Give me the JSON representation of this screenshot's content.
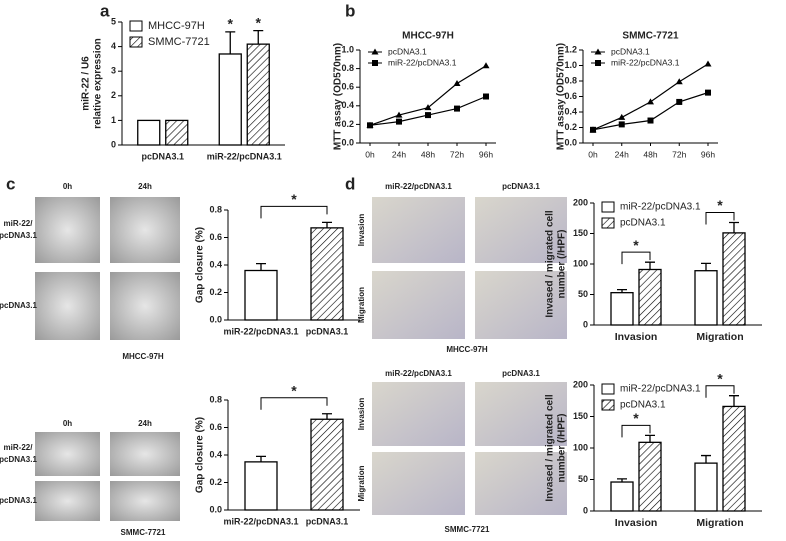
{
  "panel_labels": [
    "a",
    "b",
    "c",
    "d"
  ],
  "micrographs": [
    {
      "columns": [
        "0h",
        "24h"
      ],
      "rows": [
        [
          "miR-22/",
          "pcDNA3.1"
        ],
        [
          "pcDNA3.1"
        ]
      ],
      "caption": "MHCC-97H"
    },
    {
      "columns": [
        "0h",
        "24h"
      ],
      "rows": [
        [
          "miR-22/",
          "pcDNA3.1"
        ],
        [
          "pcDNA3.1"
        ]
      ],
      "caption": "SMMC-7721"
    },
    {
      "columns": [
        "miR-22/pcDNA3.1",
        "pcDNA3.1"
      ],
      "rows": [
        [
          "Invasion"
        ],
        [
          "Migration"
        ]
      ],
      "caption": "MHCC-97H"
    },
    {
      "columns": [
        "miR-22/pcDNA3.1",
        "pcDNA3.1"
      ],
      "rows": [
        [
          "Invasion"
        ],
        [
          "Migration"
        ]
      ],
      "caption": "SMMC-7721"
    }
  ],
  "chart_data": [
    {
      "type": "bar",
      "ylabel": [
        "miR-22 / U6",
        "relative expression"
      ],
      "categories": [
        "pcDNA3.1",
        "miR-22/pcDNA3.1"
      ],
      "series": [
        {
          "name": "MHCC-97H",
          "color": "#ffffff",
          "hatched": false,
          "values": [
            1,
            3.7
          ],
          "errors": [
            0,
            0.9
          ]
        },
        {
          "name": "SMMC-7721",
          "color": "#ffffff",
          "hatched": true,
          "values": [
            1,
            4.1
          ],
          "errors": [
            0,
            0.55
          ]
        }
      ],
      "ylim": [
        0,
        5
      ],
      "yticks": [
        0,
        1,
        2,
        3,
        4,
        5
      ],
      "annotations": [
        "*",
        "*"
      ],
      "legend": "upper left"
    },
    {
      "type": "line",
      "title": "MHCC-97H",
      "ylabel": [
        "MTT assay (OD570nm)"
      ],
      "categories": [
        "0h",
        "24h",
        "48h",
        "72h",
        "96h"
      ],
      "series": [
        {
          "name": "pcDNA3.1",
          "color": "#000000",
          "marker": "triangle",
          "values": [
            0.19,
            0.3,
            0.38,
            0.64,
            0.83
          ]
        },
        {
          "name": "miR-22/pcDNA3.1",
          "color": "#000000",
          "marker": "square",
          "values": [
            0.19,
            0.23,
            0.3,
            0.37,
            0.5
          ]
        }
      ],
      "ylim": [
        0,
        1
      ],
      "yticks": [
        {
          "value": 0,
          "label": "0.0"
        },
        0.2,
        0.4,
        0.6,
        0.8,
        {
          "value": 1,
          "label": "1.0"
        }
      ],
      "legend": "upper left"
    },
    {
      "type": "line",
      "title": "SMMC-7721",
      "ylabel": [
        "MTT assay (OD570nm)"
      ],
      "categories": [
        "0h",
        "24h",
        "48h",
        "72h",
        "96h"
      ],
      "series": [
        {
          "name": "pcDNA3.1",
          "color": "#000000",
          "marker": "triangle",
          "values": [
            0.17,
            0.33,
            0.53,
            0.79,
            1.02
          ]
        },
        {
          "name": "miR-22/pcDNA3.1",
          "color": "#000000",
          "marker": "square",
          "values": [
            0.17,
            0.24,
            0.29,
            0.53,
            0.65
          ]
        }
      ],
      "ylim": [
        0,
        1.2
      ],
      "yticks": [
        {
          "value": 0,
          "label": "0.0"
        },
        0.2,
        0.4,
        0.6,
        0.8,
        {
          "value": 1,
          "label": "1.0"
        },
        1.2
      ],
      "legend": "upper left"
    },
    {
      "type": "bar",
      "ylabel": [
        "Gap closure (%)"
      ],
      "categories": [
        "miR-22/pcDNA3.1",
        "pcDNA3.1"
      ],
      "series": [
        {
          "colors": [
            "#ffffff",
            "#ffffff"
          ],
          "hatched": [
            false,
            true
          ],
          "values": [
            0.36,
            0.67
          ],
          "errors": [
            0.05,
            0.04
          ]
        }
      ],
      "ylim": [
        0,
        0.8
      ],
      "yticks": [
        {
          "value": 0,
          "label": "0.0"
        },
        0.2,
        0.4,
        0.6,
        0.8
      ],
      "significance": [
        "*"
      ]
    },
    {
      "type": "bar",
      "ylabel": [
        "Gap closure (%)"
      ],
      "categories": [
        "miR-22/pcDNA3.1",
        "pcDNA3.1"
      ],
      "series": [
        {
          "colors": [
            "#ffffff",
            "#ffffff"
          ],
          "hatched": [
            false,
            true
          ],
          "values": [
            0.35,
            0.66
          ],
          "errors": [
            0.04,
            0.04
          ]
        }
      ],
      "ylim": [
        0,
        0.8
      ],
      "yticks": [
        {
          "value": 0,
          "label": "0.0"
        },
        0.2,
        0.4,
        0.6,
        0.8
      ],
      "significance": [
        "*"
      ]
    },
    {
      "type": "bar",
      "ylabel": [
        "Invased / migrated cell",
        "number (/HPF)"
      ],
      "categories": [
        "Invasion",
        "Migration"
      ],
      "series": [
        {
          "name": "miR-22/pcDNA3.1",
          "color": "#ffffff",
          "hatched": false,
          "values": [
            53,
            89
          ],
          "errors": [
            5,
            12
          ]
        },
        {
          "name": "pcDNA3.1",
          "color": "#ffffff",
          "hatched": true,
          "values": [
            91,
            151
          ],
          "errors": [
            12,
            17
          ]
        }
      ],
      "ylim": [
        0,
        200
      ],
      "yticks": [
        0,
        50,
        100,
        150,
        200
      ],
      "significance": [
        "*",
        "*"
      ],
      "legend": "upper left"
    },
    {
      "type": "bar",
      "ylabel": [
        "Invased / migrated cell",
        "number (/HPF)"
      ],
      "categories": [
        "Invasion",
        "Migration"
      ],
      "series": [
        {
          "name": "miR-22/pcDNA3.1",
          "color": "#ffffff",
          "hatched": false,
          "values": [
            46,
            76
          ],
          "errors": [
            5,
            12
          ]
        },
        {
          "name": "pcDNA3.1",
          "color": "#ffffff",
          "hatched": true,
          "values": [
            109,
            166
          ],
          "errors": [
            11,
            17
          ]
        }
      ],
      "ylim": [
        0,
        200
      ],
      "yticks": [
        0,
        50,
        100,
        150,
        200
      ],
      "significance": [
        "*",
        "*"
      ],
      "legend": "upper left"
    }
  ]
}
